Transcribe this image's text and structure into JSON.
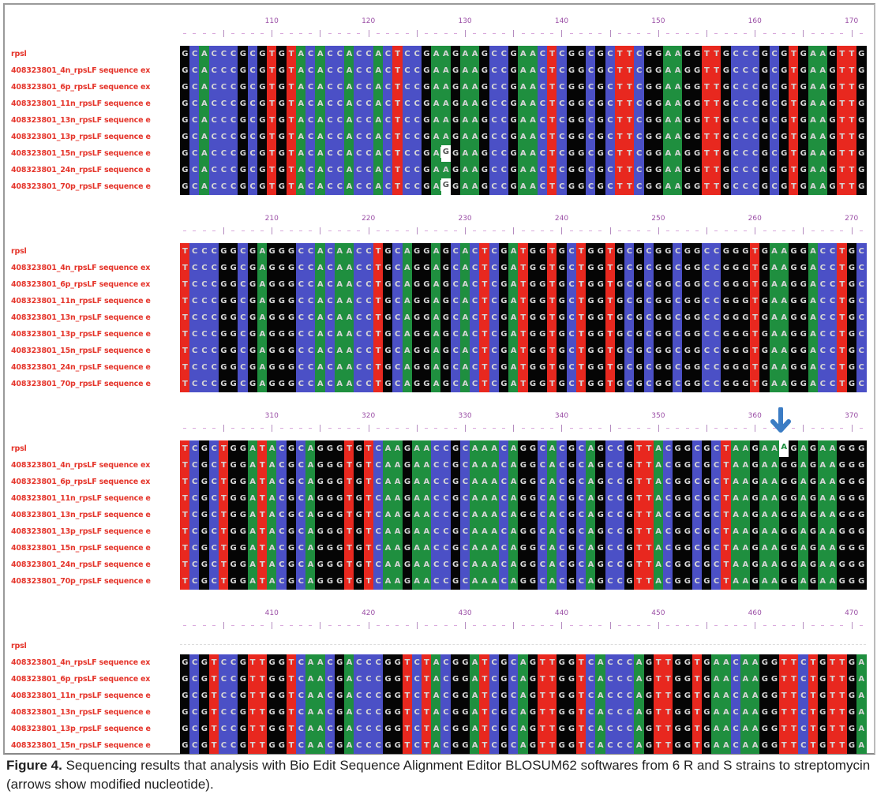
{
  "caption": {
    "label": "Figure 4.",
    "text": " Sequencing results that analysis with Bio Edit Sequence Alignment Editor BLOSUM62 softwares from 6 R and S strains to streptomycin (arrows show modified nucleotide)."
  },
  "colors": {
    "A": "#1f8f3f",
    "C": "#4b50c6",
    "G": "#050505",
    "T": "#e8281f",
    "label": "#e5352b",
    "ruler": "#9b4fa6",
    "arrow": "#3b7cc4"
  },
  "blocks": [
    {
      "ruler": [
        "110",
        "120",
        "130",
        "140",
        "150",
        "160",
        "170"
      ],
      "rows": [
        {
          "label": "rpsl",
          "seq": "GCACCCGCGTGTACACCACCACTCCGAAGAAGCCGAACTCGGCGCTTCGGAAGGTTGCCCGCGTGAAGTTG"
        },
        {
          "label": "408323801_4n_rpsLF sequence ex",
          "seq": "GCACCCGCGTGTACACCACCACTCCGAAGAAGCCGAACTCGGCGCTTCGGAAGGTTGCCCGCGTGAAGTTG"
        },
        {
          "label": "408323801_6p_rpsLF sequence ex",
          "seq": "GCACCCGCGTGTACACCACCACTCCGAAGAAGCCGAACTCGGCGCTTCGGAAGGTTGCCCGCGTGAAGTTG"
        },
        {
          "label": "408323801_11n_rpsLF sequence e",
          "seq": "GCACCCGCGTGTACACCACCACTCCGAAGAAGCCGAACTCGGCGCTTCGGAAGGTTGCCCGCGTGAAGTTG"
        },
        {
          "label": "408323801_13n_rpsLF sequence e",
          "seq": "GCACCCGCGTGTACACCACCACTCCGAAGAAGCCGAACTCGGCGCTTCGGAAGGTTGCCCGCGTGAAGTTG"
        },
        {
          "label": "408323801_13p_rpsLF sequence e",
          "seq": "GCACCCGCGTGTACACCACCACTCCGAAGAAGCCGAACTCGGCGCTTCGGAAGGTTGCCCGCGTGAAGTTG"
        },
        {
          "label": "408323801_15n_rpsLF sequence e",
          "seq": "GCACCCGCGTGTACACCACCACTCCGAGGAAGCCGAACTCGGCGCTTCGGAAGGTTGCCCGCGTGAAGTTG",
          "variant": 27
        },
        {
          "label": "408323801_24n_rpsLF sequence e",
          "seq": "GCACCCGCGTGTACACCACCACTCCGAAGAAGCCGAACTCGGCGCTTCGGAAGGTTGCCCGCGTGAAGTTG"
        },
        {
          "label": "408323801_70p_rpsLF sequence e",
          "seq": "GCACCCGCGTGTACACCACCACTCCGAGGAAGCCGAACTCGGCGCTTCGGAAGGTTGCCCGCGTGAAGTTG",
          "variant": 27
        }
      ]
    },
    {
      "ruler": [
        "210",
        "220",
        "230",
        "240",
        "250",
        "260",
        "270"
      ],
      "rows": [
        {
          "label": "rpsl",
          "seq": "TCCCGGCGAGGGCCACAACCTGCAGGAGCACTCGATGGTGCTGGTGCGCGGCGGCCGGGTGAAGGACCTGC"
        },
        {
          "label": "408323801_4n_rpsLF sequence ex",
          "seq": "TCCCGGCGAGGGCCACAACCTGCAGGAGCACTCGATGGTGCTGGTGCGCGGCGGCCGGGTGAAGGACCTGC"
        },
        {
          "label": "408323801_6p_rpsLF sequence ex",
          "seq": "TCCCGGCGAGGGCCACAACCTGCAGGAGCACTCGATGGTGCTGGTGCGCGGCGGCCGGGTGAAGGACCTGC"
        },
        {
          "label": "408323801_11n_rpsLF sequence e",
          "seq": "TCCCGGCGAGGGCCACAACCTGCAGGAGCACTCGATGGTGCTGGTGCGCGGCGGCCGGGTGAAGGACCTGC"
        },
        {
          "label": "408323801_13n_rpsLF sequence e",
          "seq": "TCCCGGCGAGGGCCACAACCTGCAGGAGCACTCGATGGTGCTGGTGCGCGGCGGCCGGGTGAAGGACCTGC"
        },
        {
          "label": "408323801_13p_rpsLF sequence e",
          "seq": "TCCCGGCGAGGGCCACAACCTGCAGGAGCACTCGATGGTGCTGGTGCGCGGCGGCCGGGTGAAGGACCTGC"
        },
        {
          "label": "408323801_15n_rpsLF sequence e",
          "seq": "TCCCGGCGAGGGCCACAACCTGCAGGAGCACTCGATGGTGCTGGTGCGCGGCGGCCGGGTGAAGGACCTGC"
        },
        {
          "label": "408323801_24n_rpsLF sequence e",
          "seq": "TCCCGGCGAGGGCCACAACCTGCAGGAGCACTCGATGGTGCTGGTGCGCGGCGGCCGGGTGAAGGACCTGC"
        },
        {
          "label": "408323801_70p_rpsLF sequence e",
          "seq": "TCCCGGCGAGGGCCACAACCTGCAGGAGCACTCGATGGTGCTGGTGCGCGGCGGCCGGGTGAAGGACCTGC"
        }
      ]
    },
    {
      "ruler": [
        "310",
        "320",
        "330",
        "340",
        "350",
        "360",
        "370"
      ],
      "arrow_column": 62,
      "rows": [
        {
          "label": "rpsl",
          "seq": "TCGCTGGATACGCAGGGTGTCAAGAACCGCAAACAGGCACGCAGCCGTTACGGCGCTAAGAAAGAGAAGGG",
          "variant": 62
        },
        {
          "label": "408323801_4n_rpsLF sequence ex",
          "seq": "TCGCTGGATACGCAGGGTGTCAAGAACCGCAAACAGGCACGCAGCCGTTACGGCGCTAAGAAGGAGAAGGG"
        },
        {
          "label": "408323801_6p_rpsLF sequence ex",
          "seq": "TCGCTGGATACGCAGGGTGTCAAGAACCGCAAACAGGCACGCAGCCGTTACGGCGCTAAGAAGGAGAAGGG"
        },
        {
          "label": "408323801_11n_rpsLF sequence e",
          "seq": "TCGCTGGATACGCAGGGTGTCAAGAACCGCAAACAGGCACGCAGCCGTTACGGCGCTAAGAAGGAGAAGGG"
        },
        {
          "label": "408323801_13n_rpsLF sequence e",
          "seq": "TCGCTGGATACGCAGGGTGTCAAGAACCGCAAACAGGCACGCAGCCGTTACGGCGCTAAGAAGGAGAAGGG"
        },
        {
          "label": "408323801_13p_rpsLF sequence e",
          "seq": "TCGCTGGATACGCAGGGTGTCAAGAACCGCAAACAGGCACGCAGCCGTTACGGCGCTAAGAAGGAGAAGGG"
        },
        {
          "label": "408323801_15n_rpsLF sequence e",
          "seq": "TCGCTGGATACGCAGGGTGTCAAGAACCGCAAACAGGCACGCAGCCGTTACGGCGCTAAGAAGGAGAAGGG"
        },
        {
          "label": "408323801_24n_rpsLF sequence e",
          "seq": "TCGCTGGATACGCAGGGTGTCAAGAACCGCAAACAGGCACGCAGCCGTTACGGCGCTAAGAAGGAGAAGGG"
        },
        {
          "label": "408323801_70p_rpsLF sequence e",
          "seq": "TCGCTGGATACGCAGGGTGTCAAGAACCGCAAACAGGCACGCAGCCGTTACGGCGCTAAGAAGGAGAAGGG"
        }
      ]
    },
    {
      "ruler": [
        "410",
        "420",
        "430",
        "440",
        "450",
        "460",
        "470"
      ],
      "rows": [
        {
          "label": "rpsl",
          "seq": ""
        },
        {
          "label": "408323801_4n_rpsLF sequence ex",
          "seq": "GCGTCCGTTGGTCAACGACCCGGTCTACGGATCGCAGTTGGTCACCCAGTTGGTGAACAAGGTTCTGTTGA"
        },
        {
          "label": "408323801_6p_rpsLF sequence ex",
          "seq": "GCGTCCGTTGGTCAACGACCCGGTCTACGGATCGCAGTTGGTCACCCAGTTGGTGAACAAGGTTCTGTTGA"
        },
        {
          "label": "408323801_11n_rpsLF sequence e",
          "seq": "GCGTCCGTTGGTCAACGACCCGGTCTACGGATCGCAGTTGGTCACCCAGTTGGTGAACAAGGTTCTGTTGA"
        },
        {
          "label": "408323801_13n_rpsLF sequence e",
          "seq": "GCGTCCGTTGGTCAACGACCCGGTCTACGGATCGCAGTTGGTCACCCAGTTGGTGAACAAGGTTCTGTTGA"
        },
        {
          "label": "408323801_13p_rpsLF sequence e",
          "seq": "GCGTCCGTTGGTCAACGACCCGGTCTACGGATCGCAGTTGGTCACCCAGTTGGTGAACAAGGTTCTGTTGA"
        },
        {
          "label": "408323801_15n_rpsLF sequence e",
          "seq": "GCGTCCGTTGGTCAACGACCCGGTCTACGGATCGCAGTTGGTCACCCAGTTGGTGAACAAGGTTCTGTTGA"
        }
      ]
    }
  ]
}
